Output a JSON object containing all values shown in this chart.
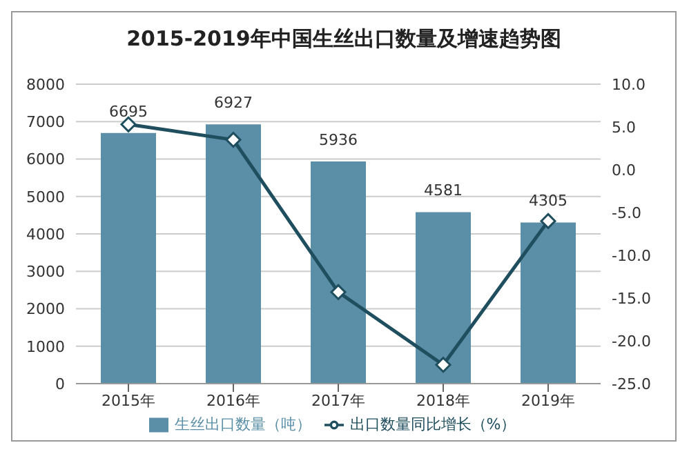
{
  "chart_data": {
    "type": "bar",
    "title": "2015-2019年中国生丝出口数量及增速趋势图",
    "categories": [
      "2015年",
      "2016年",
      "2017年",
      "2018年",
      "2019年"
    ],
    "series": [
      {
        "name": "生丝出口数量（吨）",
        "color": "#5b8fa8",
        "values": [
          6695,
          6927,
          5936,
          4581,
          4305
        ],
        "value_labels": [
          "6695",
          "6927",
          "5936",
          "4581",
          "4305"
        ]
      },
      {
        "name": "出口数量同比增长（%）",
        "type": "line",
        "axis": "y2",
        "color": "#1f4e5f",
        "values": [
          5.3,
          3.5,
          -14.3,
          -22.8,
          -6.0
        ],
        "marker": "diamond"
      }
    ],
    "ylim": [
      0,
      8000
    ],
    "yticks": [
      0,
      1000,
      2000,
      3000,
      4000,
      5000,
      6000,
      7000,
      8000
    ],
    "y2lim": [
      -25,
      10
    ],
    "y2ticks": [
      {
        "value": -25,
        "label": "-25.0"
      },
      {
        "value": -20,
        "label": "-20.0"
      },
      {
        "value": -15,
        "label": "-15.0"
      },
      {
        "value": -10,
        "label": "-10.0"
      },
      {
        "value": -5,
        "label": "-5.0"
      },
      {
        "value": 0,
        "label": "0.0"
      },
      {
        "value": 5,
        "label": "5.0"
      },
      {
        "value": 10,
        "label": "10.0"
      }
    ],
    "grid": "y",
    "legend": "bottom"
  }
}
